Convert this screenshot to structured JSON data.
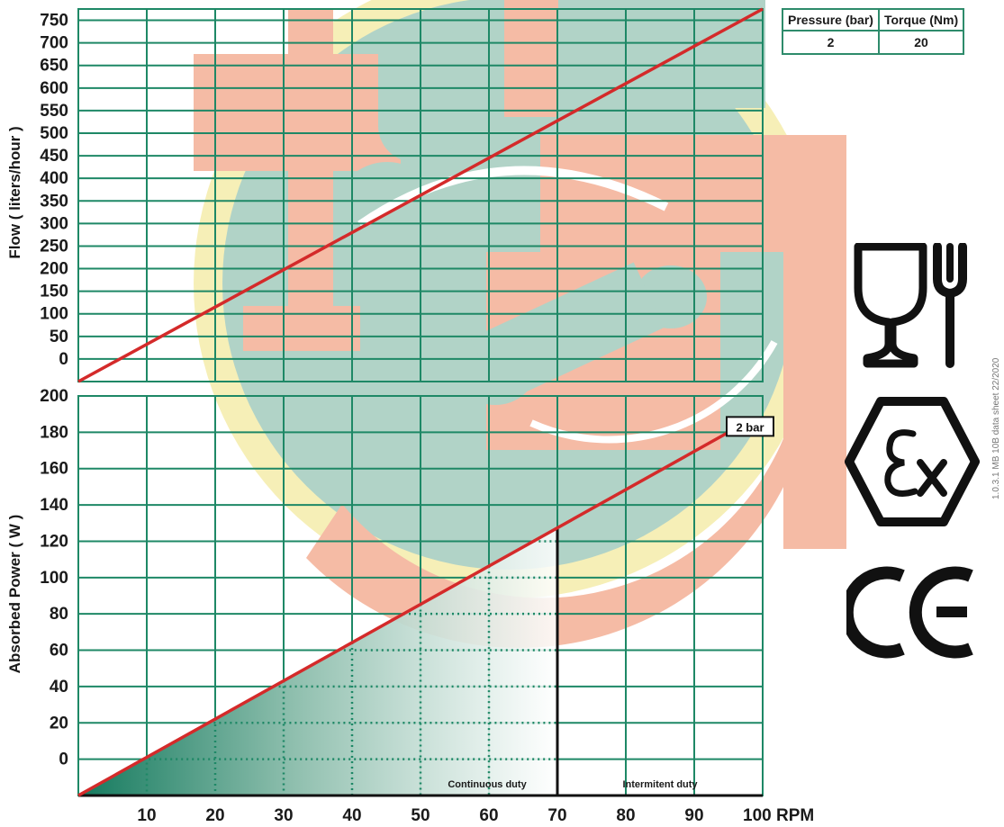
{
  "spec_table": {
    "headers": [
      "Pressure (bar)",
      "Torque (Nm)"
    ],
    "values": [
      "2",
      "20"
    ]
  },
  "colors": {
    "grid": "#1e8866",
    "line": "#d42a2a",
    "fill_dark": "#147a5e",
    "watermark_teal": "#a9cfc2",
    "watermark_salmon": "#f4b49c",
    "watermark_yellow": "#f6eeb0"
  },
  "icons": [
    "food-safe-icon",
    "atex-ex-icon",
    "ce-mark-icon"
  ],
  "side_text": "1.0.3.1 MB 10B data sheet 22/2020",
  "chart_data": [
    {
      "type": "line",
      "title": "",
      "xlabel": "",
      "ylabel": "Flow ( liters/hour )",
      "xlim": [
        0,
        100
      ],
      "ylim": [
        -50,
        775
      ],
      "y_ticks": [
        0,
        50,
        100,
        150,
        200,
        250,
        300,
        350,
        400,
        450,
        500,
        550,
        600,
        650,
        700,
        750
      ],
      "grid": true,
      "series": [
        {
          "x": [
            0,
            100
          ],
          "y": [
            -50,
            775
          ]
        }
      ]
    },
    {
      "type": "line",
      "title": "",
      "xlabel": "RPM",
      "ylabel": "Absorbed Power ( W )",
      "xlim": [
        0,
        100
      ],
      "ylim": [
        -20,
        200
      ],
      "x_ticks": [
        10,
        20,
        30,
        40,
        50,
        60,
        70,
        80,
        90,
        100
      ],
      "x_tick_labels": [
        "10",
        "20",
        "30",
        "40",
        "50",
        "60",
        "70",
        "80",
        "90",
        "100 RPM"
      ],
      "y_ticks": [
        0,
        20,
        40,
        60,
        80,
        100,
        120,
        140,
        160,
        180,
        200
      ],
      "grid": true,
      "series": [
        {
          "name": "2 bar",
          "x": [
            0,
            95
          ],
          "y": [
            -20,
            180
          ]
        }
      ],
      "regions": [
        {
          "label": "Continuous duty",
          "x": [
            0,
            70
          ]
        },
        {
          "label": "Intermitent duty",
          "x": [
            70,
            100
          ]
        }
      ]
    }
  ]
}
